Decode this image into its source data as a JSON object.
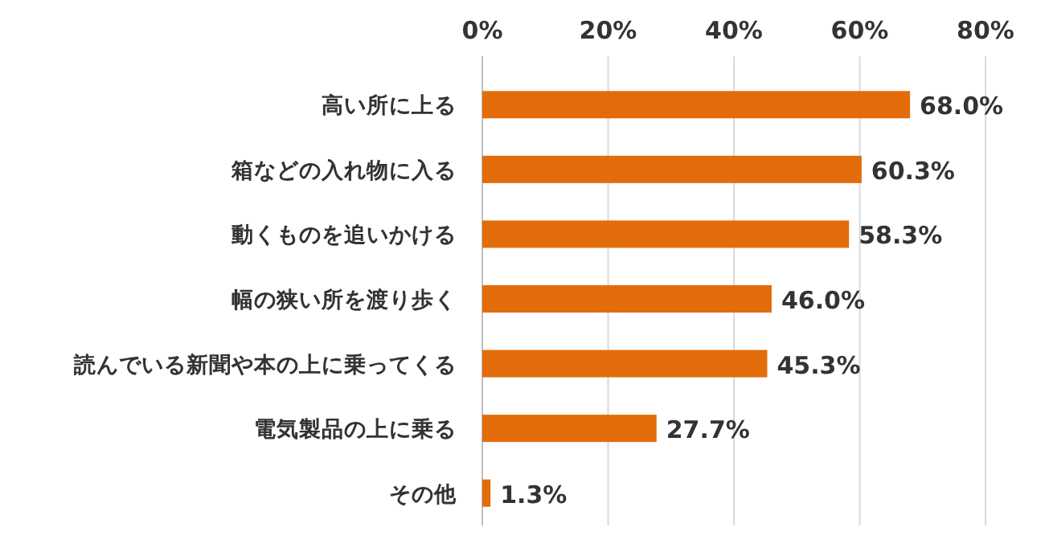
{
  "chart_data": {
    "type": "bar",
    "orientation": "horizontal",
    "categories": [
      "高い所に上る",
      "箱などの入れ物に入る",
      "動くものを追いかける",
      "幅の狭い所を渡り歩く",
      "読んでいる新聞や本の上に乗ってくる",
      "電気製品の上に乗る",
      "その他"
    ],
    "values": [
      68.0,
      60.3,
      58.3,
      46.0,
      45.3,
      27.7,
      1.3
    ],
    "value_labels": [
      "68.0%",
      "60.3%",
      "58.3%",
      "46.0%",
      "45.3%",
      "27.7%",
      "1.3%"
    ],
    "color": "#e36c0a",
    "xlim": [
      0,
      80
    ],
    "xticks": [
      {
        "value": 0,
        "label": "0%"
      },
      {
        "value": 20,
        "label": "20%"
      },
      {
        "value": 40,
        "label": "40%"
      },
      {
        "value": 60,
        "label": "60%"
      },
      {
        "value": 80,
        "label": "80%"
      }
    ],
    "grid": "x"
  }
}
